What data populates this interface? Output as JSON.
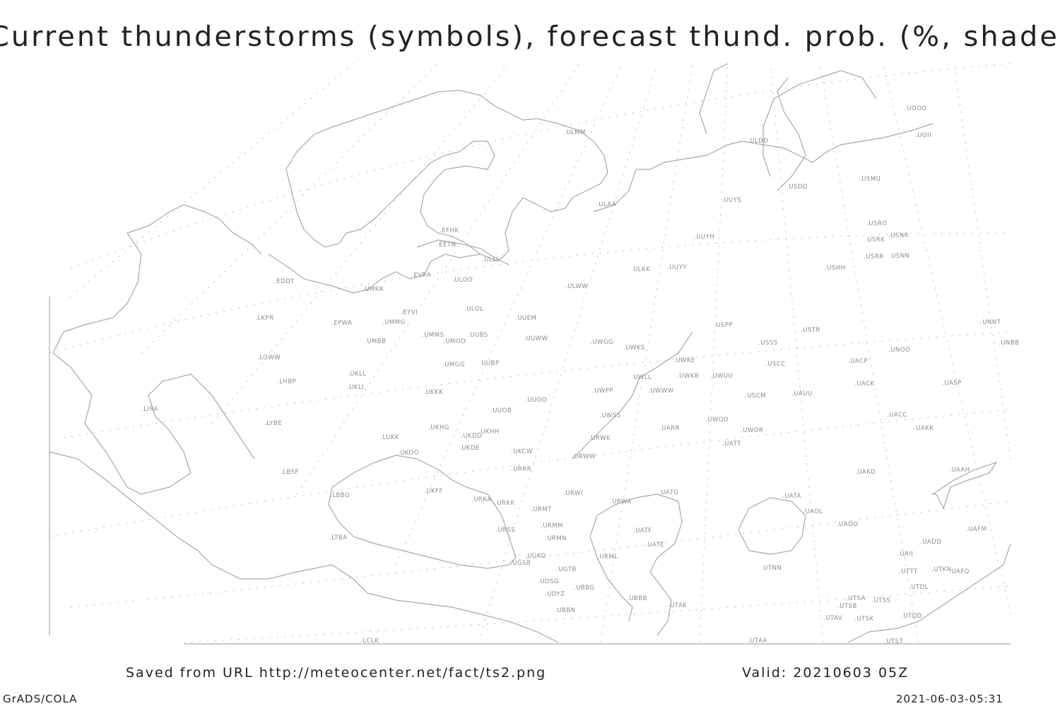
{
  "title": "Current thunderstorms (symbols), forecast thund. prob. (%, shaded)",
  "footer": {
    "saved_from": "Saved from URL http://meteocenter.net/fact/ts2.png",
    "valid": "Valid: 20210603 05Z",
    "software": "GrADS/COLA",
    "timestamp": "2021-06-03-05:31"
  },
  "map": {
    "line_color": "#a8a8a8",
    "label_color": "#8a8a8a",
    "stations": [
      "UOOO",
      "UOII",
      "ULMM",
      "ULDD",
      "USDD",
      "USMU",
      "ULAA",
      "UUYS",
      "UUYH",
      "USRO",
      "USRK",
      "USNR",
      "USRR",
      "USNN",
      "USHH",
      "ULKK",
      "UUYY",
      "EFHK",
      "EETN",
      "ULLI",
      "EVRA",
      "ULOO",
      "EDDT",
      "UMKK",
      "ULWW",
      "ULOL",
      "EYVI",
      "UUEM",
      "LKPR",
      "EPWA",
      "UMMG",
      "USPP",
      "USTR",
      "UMMS",
      "UUBS",
      "UMOO",
      "UUWW",
      "UNNT",
      "UNBB",
      "UMBB",
      "UWGG",
      "UWKS",
      "USSS",
      "UNOO",
      "LOWW",
      "UWKE",
      "UACP",
      "USCC",
      "UMGG",
      "UUBP",
      "UKLL",
      "UWKB",
      "UWUU",
      "LHBP",
      "UKLI",
      "UACK",
      "UASP",
      "UWLL",
      "UWWW",
      "UWPP",
      "USCM",
      "UAUU",
      "UKKK",
      "LIRA",
      "UUOO",
      "UUOB",
      "UACC",
      "LYBE",
      "UWSS",
      "UAKK",
      "UKHG",
      "UKHH",
      "UARR",
      "UWOO",
      "UWOR",
      "LUKK",
      "UKDD",
      "URWK",
      "UKDE",
      "UATT",
      "UKOO",
      "UKCW",
      "URWW",
      "LBSF",
      "URRR",
      "UAKD",
      "UAAH",
      "UKFF",
      "LBBG",
      "URWI",
      "UATG",
      "UATA",
      "URKA",
      "URKK",
      "URWA",
      "URMT",
      "UAOL",
      "UAOO",
      "URMM",
      "URSS",
      "UATF",
      "UAFM",
      "URMN",
      "LTBA",
      "UATE",
      "UADD",
      "UGKO",
      "UAII",
      "URML",
      "UGSB",
      "UTNN",
      "UGTB",
      "UTKN",
      "UAFQ",
      "UTTT",
      "UDSG",
      "UBBG",
      "UTDL",
      "UDYZ",
      "UBBB",
      "UTSA",
      "UTSS",
      "UTSB",
      "UTAK",
      "UBBN",
      "UTDD",
      "UTAV",
      "UTSK",
      "LCLK",
      "UTAA",
      "UTST"
    ]
  }
}
